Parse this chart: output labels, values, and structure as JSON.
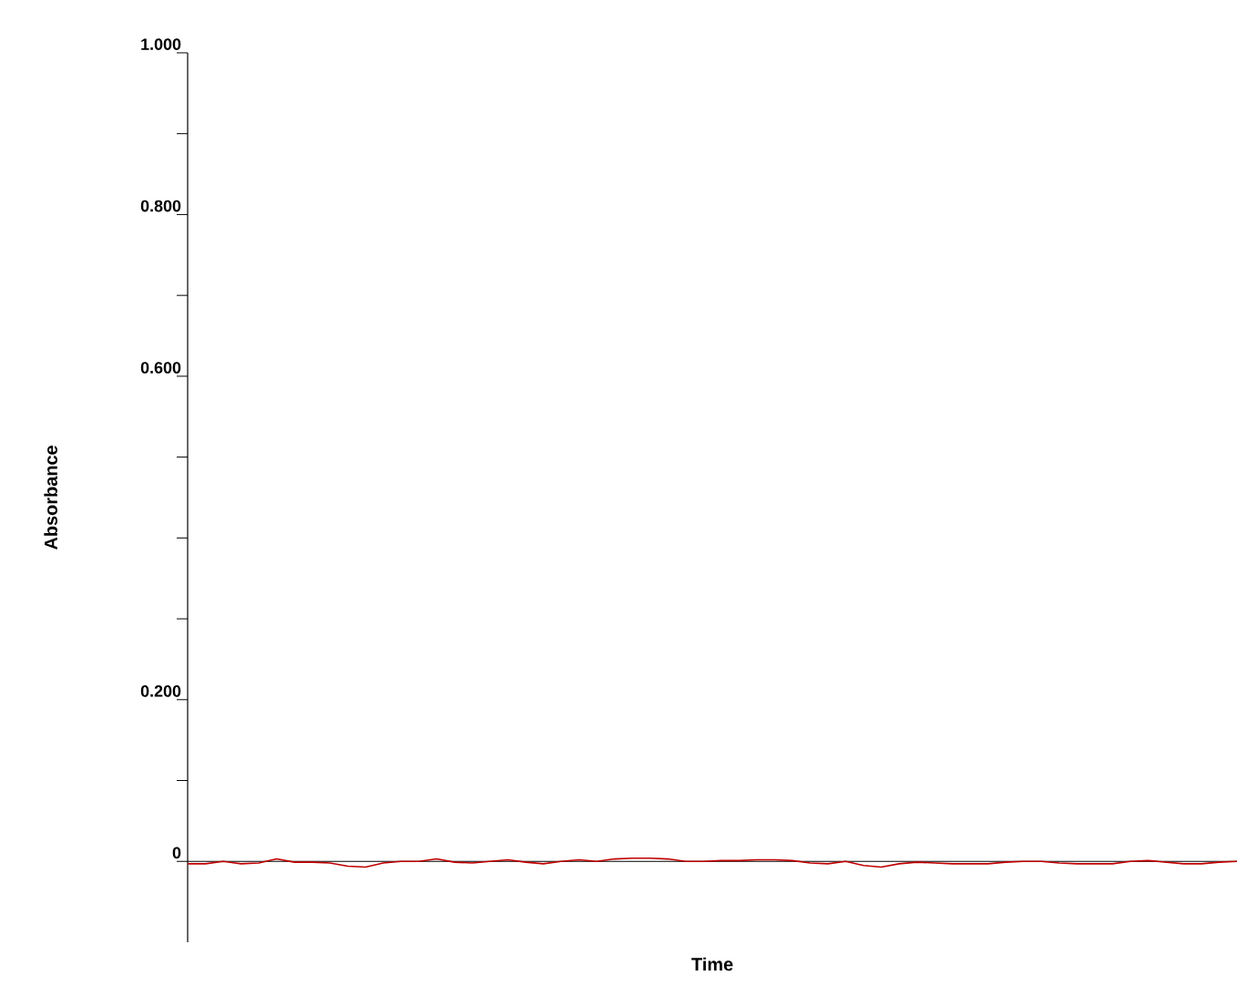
{
  "chart_data": {
    "type": "line",
    "xlabel": "Time",
    "ylabel": "Absorbance",
    "categories": [
      null,
      null,
      null,
      null,
      null,
      null,
      null,
      null,
      null,
      null,
      null,
      null,
      null,
      null,
      null,
      null,
      null,
      null,
      null,
      null,
      null,
      null,
      null,
      null,
      null,
      null,
      null,
      null,
      null,
      null,
      null,
      null,
      null,
      null,
      null,
      null,
      null,
      null,
      null,
      null,
      null,
      null,
      null,
      null,
      null,
      null,
      null,
      null,
      null,
      null,
      null,
      null,
      null,
      null,
      null,
      null,
      null,
      null,
      null,
      null
    ],
    "series": [
      {
        "color": "#c00000",
        "values": [
          -0.003,
          -0.003,
          0,
          -0.003,
          -0.002,
          0.003,
          -0.001,
          -0.001,
          -0.002,
          -0.006,
          -0.007,
          -0.002,
          0,
          0,
          0.003,
          -0.001,
          -0.002,
          0,
          0.002,
          -0.001,
          -0.003,
          0,
          0.002,
          0,
          0.003,
          0.004,
          0.004,
          0.003,
          0,
          0,
          0.001,
          0.001,
          0.002,
          0.002,
          0.001,
          -0.002,
          -0.003,
          0,
          -0.005,
          -0.007,
          -0.003,
          -0.001,
          -0.002,
          -0.003,
          -0.003,
          -0.003,
          -0.001,
          0,
          0,
          -0.002,
          -0.003,
          -0.003,
          -0.003,
          0,
          0.001,
          -0.001,
          -0.003,
          -0.003,
          -0.001,
          0
        ]
      }
    ],
    "ylim": [
      -0.1,
      1.0
    ],
    "yticks": [
      0,
      {
        "value": 0.1,
        "label": null
      },
      {
        "value": 0.2,
        "label": "0.200"
      },
      {
        "value": 0.3,
        "label": null
      },
      {
        "value": 0.4,
        "label": null
      },
      {
        "value": 0.5,
        "label": null
      },
      {
        "value": 0.6,
        "label": "0.600"
      },
      {
        "value": 0.7,
        "label": null
      },
      {
        "value": 0.8,
        "label": "0.800"
      },
      {
        "value": 0.9,
        "label": null
      },
      {
        "value": 1.0,
        "label": "1.000"
      }
    ],
    "ref_lines": [
      {
        "axis": "y",
        "value": 0,
        "color": "#000000"
      }
    ],
    "grid": false,
    "marker": "none",
    "line_style": "solid"
  }
}
